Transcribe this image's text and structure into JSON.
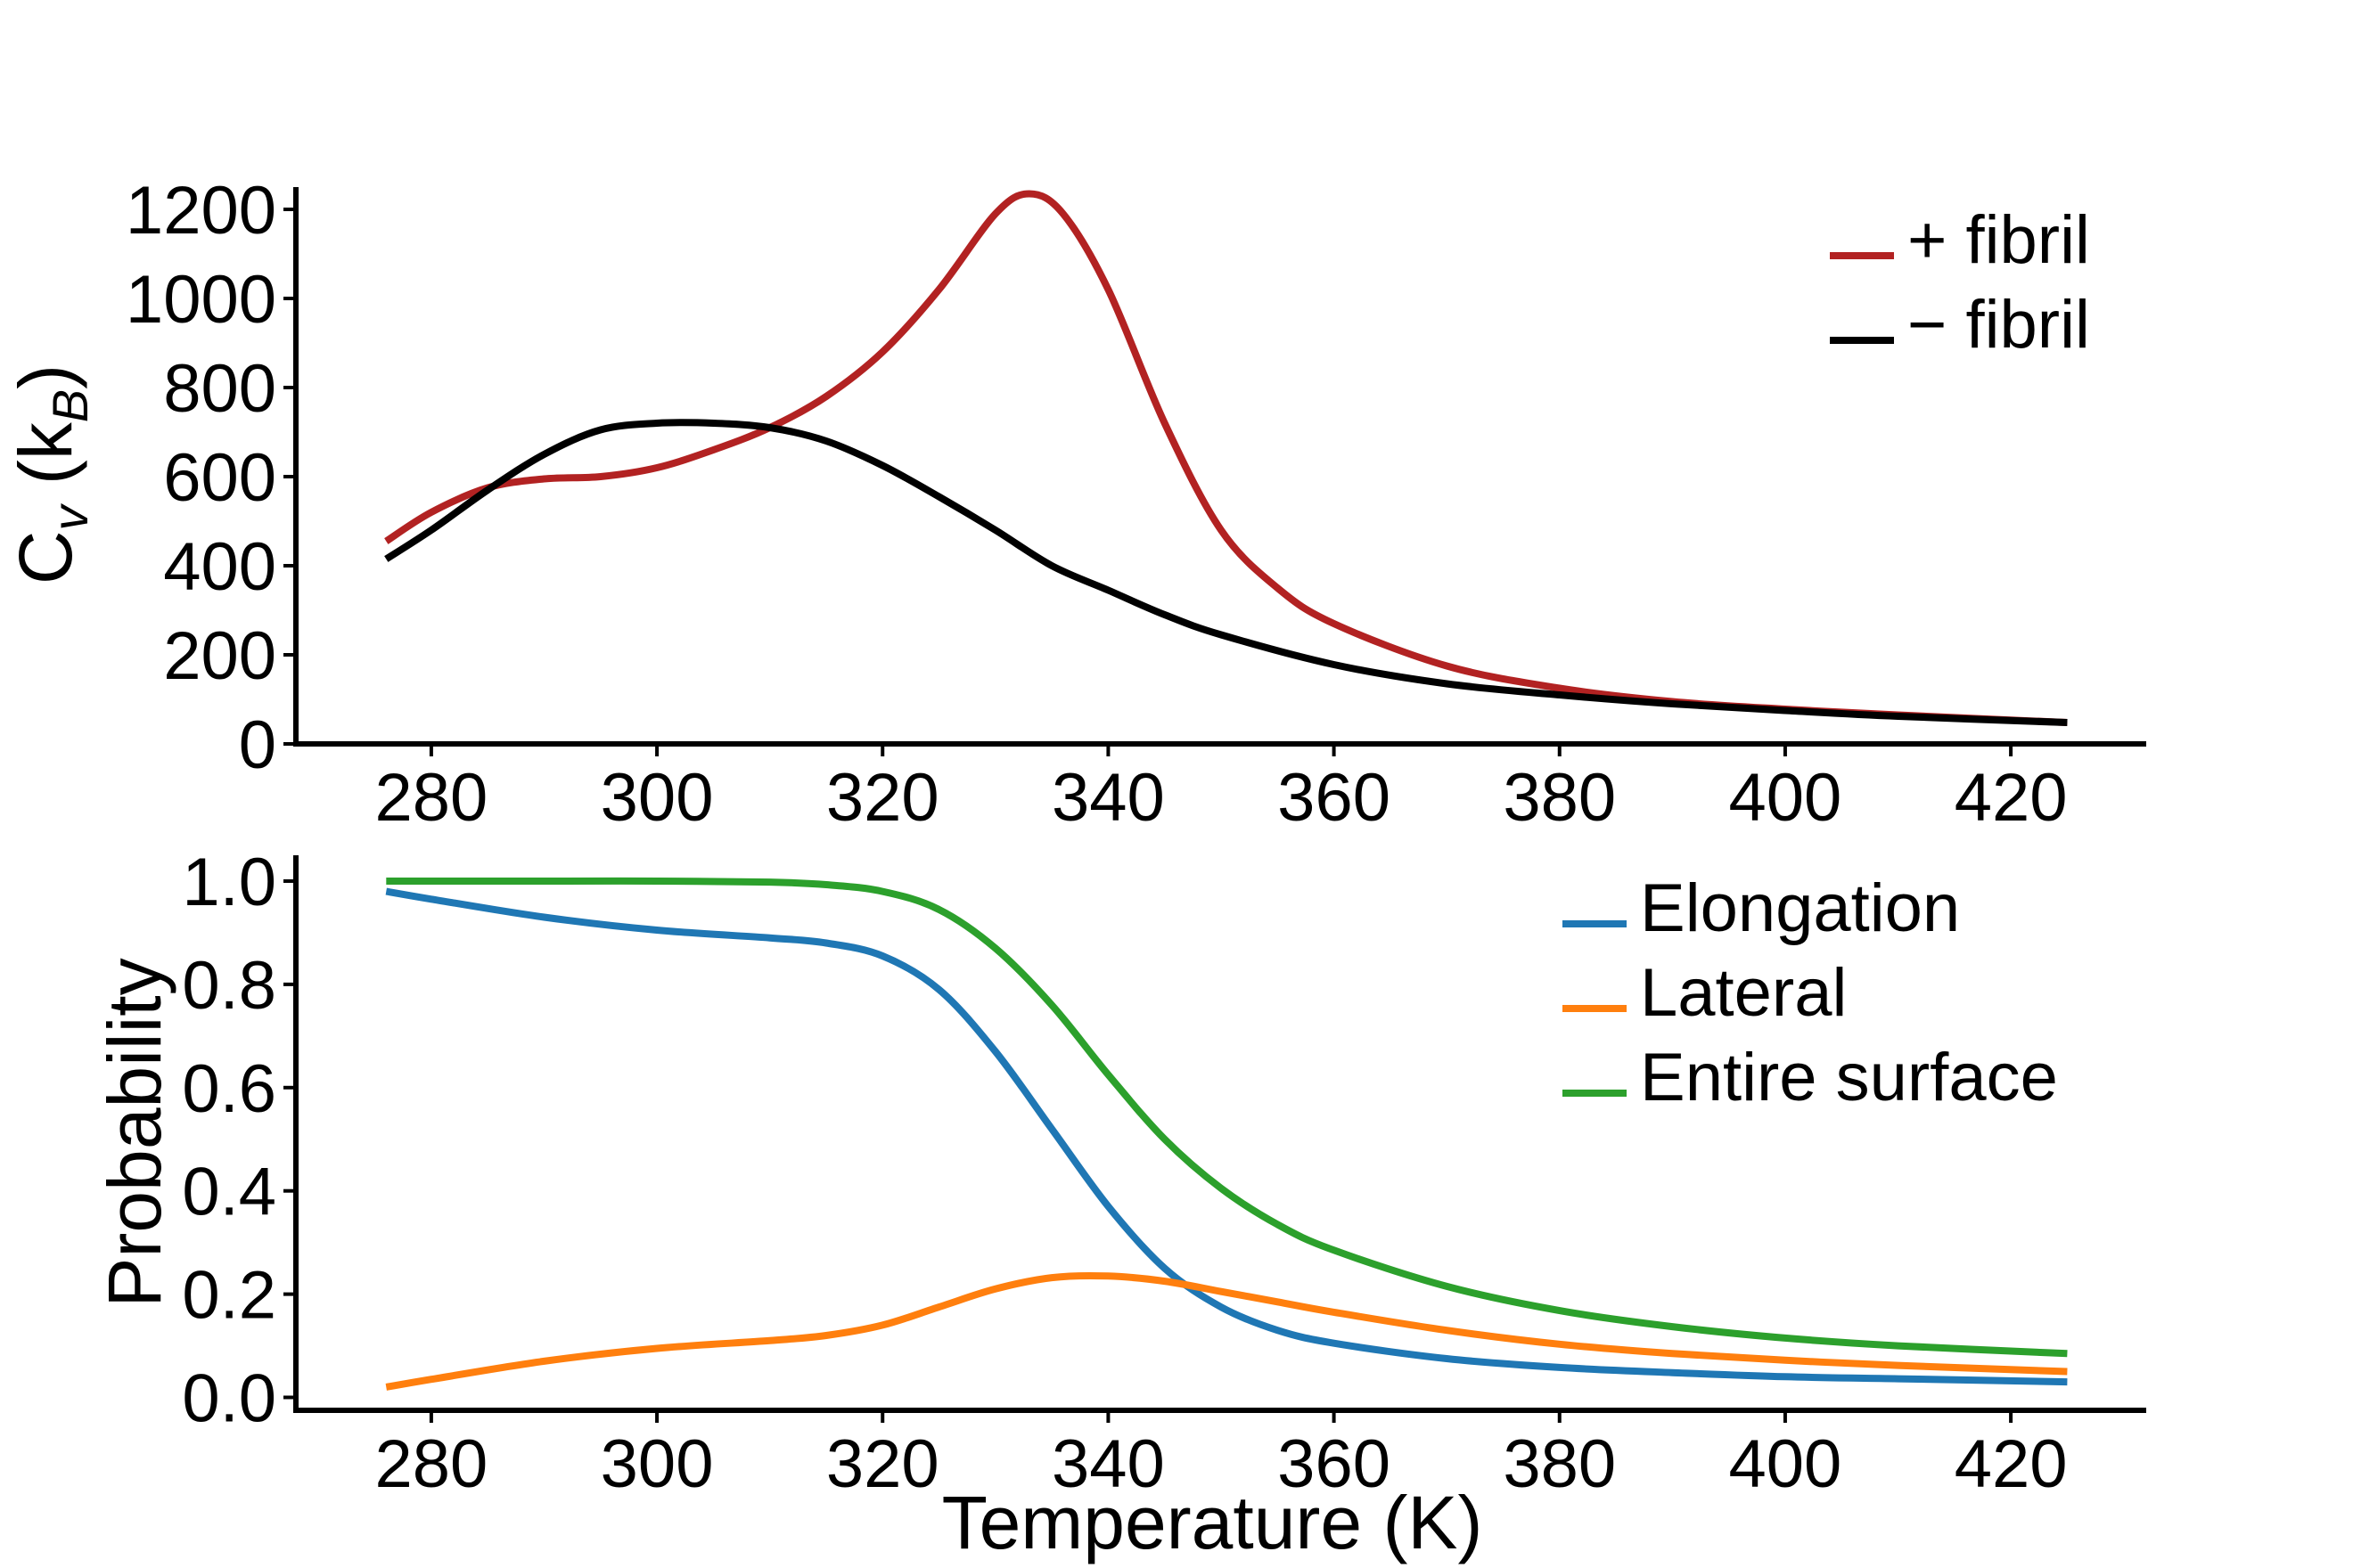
{
  "chart_data": [
    {
      "type": "line",
      "panel": "top",
      "title": "",
      "xlabel": "",
      "ylabel": {
        "main": "C",
        "sub": "v",
        "open": " (k",
        "sub2": "B",
        "close": ")"
      },
      "xlim": [
        268,
        432
      ],
      "ylim": [
        0,
        1250
      ],
      "xticks": [
        280,
        300,
        320,
        340,
        360,
        380,
        400,
        420
      ],
      "yticks": [
        0,
        200,
        400,
        600,
        800,
        1000,
        1200
      ],
      "legend_position": "top-right",
      "series": [
        {
          "name": "+ fibril",
          "color": "#b22222",
          "x": [
            276,
            280,
            285,
            290,
            295,
            300,
            305,
            310,
            315,
            320,
            325,
            330,
            333,
            336,
            340,
            345,
            350,
            355,
            360,
            370,
            380,
            390,
            400,
            410,
            425
          ],
          "y": [
            455,
            520,
            575,
            595,
            600,
            620,
            660,
            710,
            780,
            880,
            1020,
            1190,
            1235,
            1190,
            1020,
            720,
            480,
            350,
            270,
            175,
            125,
            95,
            78,
            65,
            48
          ]
        },
        {
          "name": "− fibril",
          "color": "#000000",
          "x": [
            276,
            280,
            285,
            290,
            295,
            300,
            305,
            310,
            315,
            320,
            325,
            330,
            335,
            340,
            345,
            350,
            360,
            370,
            380,
            390,
            400,
            410,
            425
          ],
          "y": [
            415,
            480,
            570,
            650,
            705,
            720,
            720,
            710,
            680,
            625,
            555,
            480,
            400,
            345,
            290,
            245,
            178,
            135,
            110,
            90,
            75,
            62,
            48
          ]
        }
      ]
    },
    {
      "type": "line",
      "panel": "bottom",
      "title": "",
      "xlabel": "Temperature (K)",
      "ylabel": "Probability",
      "xlim": [
        268,
        432
      ],
      "ylim": [
        -0.025,
        1.05
      ],
      "xticks": [
        280,
        300,
        320,
        340,
        360,
        380,
        400,
        420
      ],
      "yticks": [
        0.0,
        0.2,
        0.4,
        0.6,
        0.8,
        1.0
      ],
      "ytick_labels": [
        "0.0",
        "0.2",
        "0.4",
        "0.6",
        "0.8",
        "1.0"
      ],
      "legend_position": "top-right",
      "series": [
        {
          "name": "Elongation",
          "color": "#1f77b4",
          "x": [
            276,
            280,
            290,
            300,
            310,
            315,
            320,
            325,
            330,
            335,
            340,
            345,
            350,
            355,
            360,
            370,
            380,
            390,
            400,
            410,
            425
          ],
          "y": [
            0.98,
            0.965,
            0.93,
            0.905,
            0.89,
            0.88,
            0.855,
            0.79,
            0.67,
            0.52,
            0.37,
            0.25,
            0.175,
            0.13,
            0.105,
            0.075,
            0.058,
            0.048,
            0.04,
            0.036,
            0.03
          ]
        },
        {
          "name": "Lateral",
          "color": "#ff7f0e",
          "x": [
            276,
            280,
            290,
            300,
            310,
            315,
            320,
            325,
            330,
            335,
            340,
            345,
            350,
            355,
            360,
            370,
            380,
            390,
            400,
            410,
            425
          ],
          "y": [
            0.02,
            0.035,
            0.07,
            0.095,
            0.11,
            0.12,
            0.14,
            0.175,
            0.21,
            0.232,
            0.235,
            0.225,
            0.205,
            0.185,
            0.165,
            0.13,
            0.103,
            0.085,
            0.072,
            0.062,
            0.05
          ]
        },
        {
          "name": "Entire surface",
          "color": "#2ca02c",
          "x": [
            276,
            290,
            300,
            310,
            315,
            320,
            325,
            330,
            335,
            340,
            345,
            350,
            355,
            360,
            370,
            380,
            390,
            400,
            410,
            425
          ],
          "y": [
            1.0,
            1.0,
            1.0,
            0.998,
            0.993,
            0.98,
            0.945,
            0.87,
            0.76,
            0.625,
            0.5,
            0.405,
            0.335,
            0.285,
            0.215,
            0.168,
            0.137,
            0.115,
            0.1,
            0.085
          ]
        }
      ]
    }
  ]
}
